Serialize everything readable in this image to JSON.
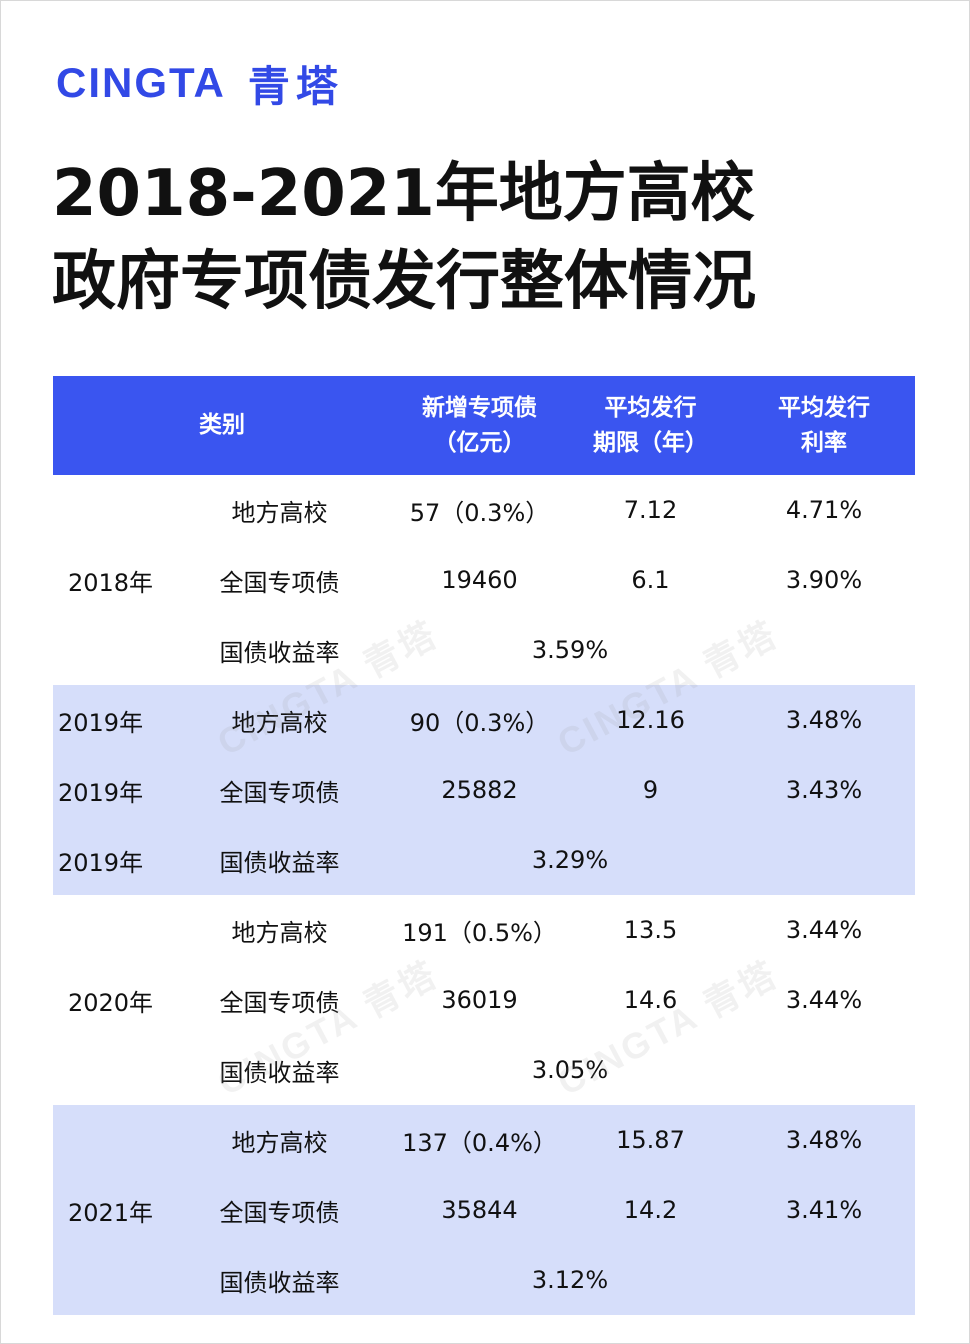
{
  "brand": {
    "name_en": "CINGTA",
    "name_cn": "青塔"
  },
  "title": {
    "line1": "2018-2021年地方高校",
    "line2": "政府专项债发行整体情况"
  },
  "watermark": "CINGTA 青塔",
  "table": {
    "headers": {
      "category": "类别",
      "new_bonds": [
        "新增专项债",
        "（亿元）"
      ],
      "avg_term": [
        "平均发行",
        "期限（年）"
      ],
      "avg_rate": [
        "平均发行",
        "利率"
      ]
    },
    "groups": [
      {
        "year": "2018年",
        "rows": [
          {
            "category": "地方高校",
            "amount": "57（0.3%）",
            "term": "7.12",
            "rate": "4.71%"
          },
          {
            "category": "全国专项债",
            "amount": "19460",
            "term": "6.1",
            "rate": "3.90%"
          },
          {
            "category": "国债收益率",
            "yield": "3.59%"
          }
        ]
      },
      {
        "year": "2019年",
        "rows": [
          {
            "year": "2019年",
            "category": "地方高校",
            "amount": "90（0.3%）",
            "term": "12.16",
            "rate": "3.48%"
          },
          {
            "year": "2019年",
            "category": "全国专项债",
            "amount": "25882",
            "term": "9",
            "rate": "3.43%"
          },
          {
            "year": "2019年",
            "category": "国债收益率",
            "yield": "3.29%"
          }
        ]
      },
      {
        "year": "2020年",
        "rows": [
          {
            "category": "地方高校",
            "amount": "191（0.5%）",
            "term": "13.5",
            "rate": "3.44%"
          },
          {
            "category": "全国专项债",
            "amount": "36019",
            "term": "14.6",
            "rate": "3.44%"
          },
          {
            "category": "国债收益率",
            "yield": "3.05%"
          }
        ]
      },
      {
        "year": "2021年",
        "rows": [
          {
            "category": "地方高校",
            "amount": "137（0.4%）",
            "term": "15.87",
            "rate": "3.48%"
          },
          {
            "category": "全国专项债",
            "amount": "35844",
            "term": "14.2",
            "rate": "3.41%"
          },
          {
            "category": "国债收益率",
            "yield": "3.12%"
          }
        ]
      }
    ]
  }
}
